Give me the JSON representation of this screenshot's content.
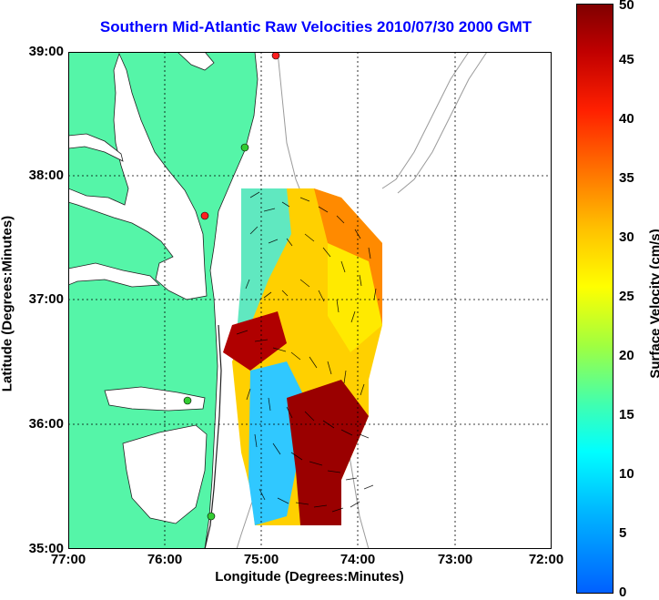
{
  "title": "Southern Mid-Atlantic Raw Velocities 2010/07/30 2000 GMT",
  "map": {
    "lat_ticks": [
      "35:00",
      "36:00",
      "37:00",
      "38:00",
      "39:00"
    ],
    "lon_ticks": [
      "77:00",
      "76:00",
      "75:00",
      "74:00",
      "73:00",
      "72:00"
    ],
    "xlabel": "Longitude (Degrees:Minutes)",
    "ylabel": "Latitude (Degrees:Minutes)",
    "lon_range": [
      -77,
      -72
    ],
    "lat_range": [
      35,
      39
    ],
    "land_color": "#55f5a8",
    "grid": true
  },
  "colorbar": {
    "label": "Surface Velocity (cm/s)",
    "ticks": [
      "0",
      "5",
      "10",
      "15",
      "20",
      "25",
      "30",
      "35",
      "40",
      "45",
      "50"
    ],
    "range": [
      0,
      50
    ],
    "colormap": "jet"
  },
  "stations": [
    {
      "status": "green",
      "color": "#33cc33"
    },
    {
      "status": "red",
      "color": "#ff2020"
    },
    {
      "status": "green",
      "color": "#33cc33"
    },
    {
      "status": "green",
      "color": "#33cc33"
    },
    {
      "status": "red",
      "color": "#ff2020"
    }
  ]
}
